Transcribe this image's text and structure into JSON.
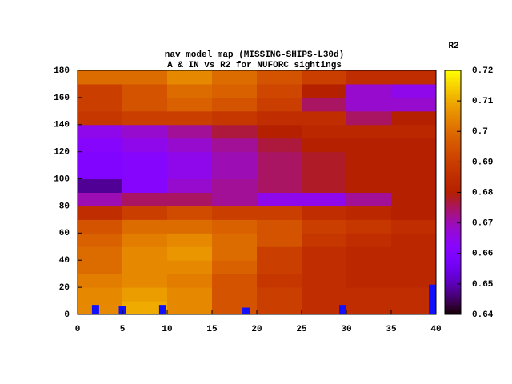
{
  "chart_data": {
    "type": "heatmap",
    "title": "nav model map (MISSING-SHIPS-L30d)",
    "subtitle": "A & IN vs R2 for NUFORC sightings",
    "colorbar_label": "R2",
    "palette": "rgbformulae 7,5,15",
    "x": [
      2.5,
      7.5,
      12.5,
      17.5,
      22.5,
      27.5,
      32.5,
      37.5
    ],
    "y": [
      5,
      15,
      25,
      35,
      45,
      55,
      65,
      75,
      85,
      95,
      105,
      115,
      125,
      135,
      145,
      155,
      165,
      175
    ],
    "z": [
      [
        0.705,
        0.71,
        0.705,
        0.695,
        0.69,
        0.685,
        0.685,
        0.685
      ],
      [
        0.705,
        0.708,
        0.705,
        0.695,
        0.69,
        0.685,
        0.685,
        0.685
      ],
      [
        0.703,
        0.705,
        0.703,
        0.695,
        0.688,
        0.685,
        0.683,
        0.683
      ],
      [
        0.7,
        0.705,
        0.705,
        0.698,
        0.69,
        0.685,
        0.683,
        0.683
      ],
      [
        0.7,
        0.705,
        0.707,
        0.7,
        0.69,
        0.685,
        0.683,
        0.683
      ],
      [
        0.698,
        0.703,
        0.705,
        0.7,
        0.695,
        0.688,
        0.685,
        0.683
      ],
      [
        0.695,
        0.7,
        0.7,
        0.698,
        0.695,
        0.69,
        0.688,
        0.685
      ],
      [
        0.685,
        0.69,
        0.693,
        0.69,
        0.69,
        0.685,
        0.683,
        0.68
      ],
      [
        0.67,
        0.675,
        0.675,
        0.672,
        0.665,
        0.665,
        0.672,
        0.68
      ],
      [
        0.648,
        0.662,
        0.668,
        0.672,
        0.675,
        0.678,
        0.68,
        0.68
      ],
      [
        0.66,
        0.662,
        0.665,
        0.67,
        0.675,
        0.678,
        0.68,
        0.68
      ],
      [
        0.66,
        0.662,
        0.665,
        0.67,
        0.675,
        0.678,
        0.68,
        0.68
      ],
      [
        0.662,
        0.665,
        0.668,
        0.672,
        0.677,
        0.68,
        0.68,
        0.68
      ],
      [
        0.665,
        0.668,
        0.672,
        0.677,
        0.68,
        0.683,
        0.683,
        0.683
      ],
      [
        0.688,
        0.69,
        0.69,
        0.688,
        0.685,
        0.685,
        0.675,
        0.68
      ],
      [
        0.69,
        0.695,
        0.698,
        0.695,
        0.69,
        0.675,
        0.668,
        0.668
      ],
      [
        0.69,
        0.695,
        0.7,
        0.698,
        0.692,
        0.68,
        0.668,
        0.665
      ],
      [
        0.7,
        0.7,
        0.705,
        0.7,
        0.695,
        0.69,
        0.685,
        0.685
      ]
    ],
    "markers": {
      "x": [
        2,
        5,
        9.5,
        18.8,
        29.6,
        39.6
      ],
      "values": [
        7,
        6,
        7,
        5,
        7,
        22
      ],
      "color": "#1010ff"
    },
    "xlim": [
      0,
      40
    ],
    "xticks": [
      0,
      5,
      10,
      15,
      20,
      25,
      30,
      35,
      40
    ],
    "ylim": [
      0,
      180
    ],
    "yticks": [
      0,
      20,
      40,
      60,
      80,
      100,
      120,
      140,
      160,
      180
    ],
    "cblim": [
      0.64,
      0.72
    ],
    "cbticks": [
      0.64,
      0.65,
      0.66,
      0.67,
      0.68,
      0.69,
      0.7,
      0.71,
      0.72
    ]
  }
}
